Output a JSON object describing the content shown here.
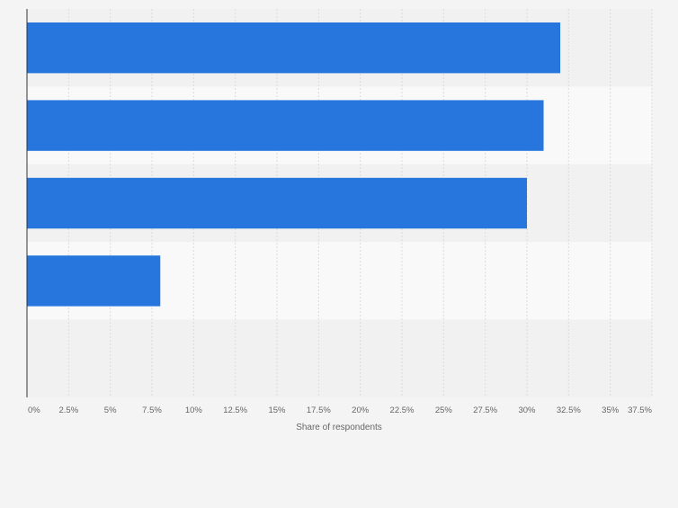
{
  "chart_data": {
    "type": "bar",
    "orientation": "horizontal",
    "categories": [
      "",
      "",
      "",
      "",
      ""
    ],
    "values": [
      32,
      31,
      30,
      8,
      0
    ],
    "xlabel": "Share of respondents",
    "ylabel": "",
    "xlim": [
      0,
      37.5
    ],
    "ticks": [
      0,
      2.5,
      5,
      7.5,
      10,
      12.5,
      15,
      17.5,
      20,
      22.5,
      25,
      27.5,
      30,
      32.5,
      35,
      37.5
    ],
    "tick_labels": [
      "0%",
      "2.5%",
      "5%",
      "7.5%",
      "10%",
      "12.5%",
      "15%",
      "17.5%",
      "20%",
      "22.5%",
      "25%",
      "27.5%",
      "30%",
      "32.5%",
      "35%",
      "37.5%"
    ],
    "grid": true,
    "legend": "none"
  },
  "colors": {
    "bar": "#2776dd",
    "band_dark": "#f1f1f1",
    "band_light": "#f9f9f9",
    "grid": "#dcdcdc",
    "axis": "#333333",
    "tick_text": "#666666"
  }
}
